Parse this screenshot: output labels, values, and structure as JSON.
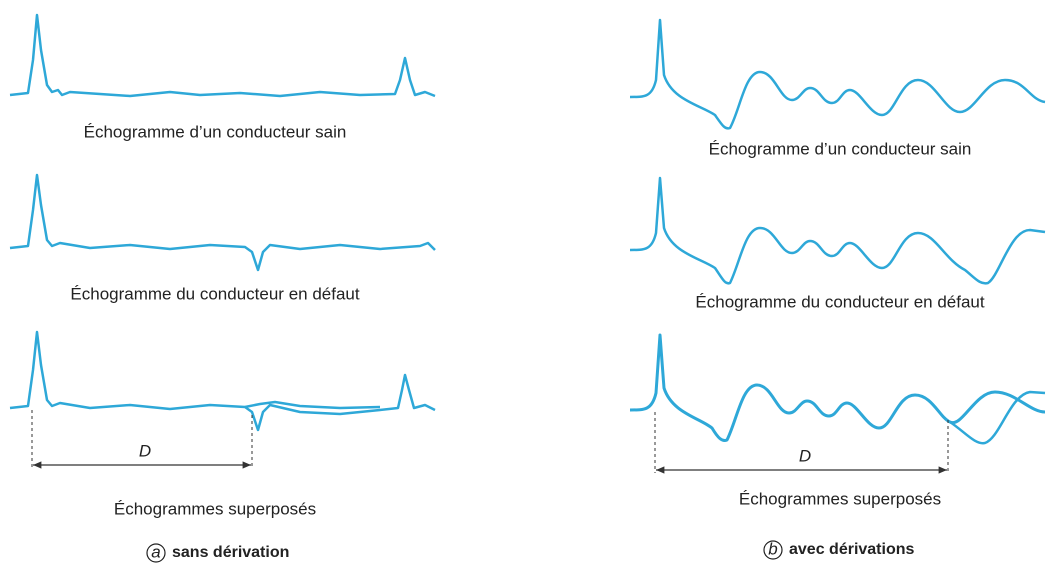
{
  "panels": [
    {
      "letter": "a",
      "label": "sans dérivation",
      "captions": [
        "Échogramme d’un conducteur sain",
        "Échogramme du conducteur en défaut",
        "Échogrammes superposés"
      ],
      "distance": "D"
    },
    {
      "letter": "b",
      "label": "avec dérivations",
      "captions": [
        "Échogramme d’un conducteur sain",
        "Échogramme du conducteur en défaut",
        "Échogrammes superposés"
      ],
      "distance": "D"
    }
  ]
}
